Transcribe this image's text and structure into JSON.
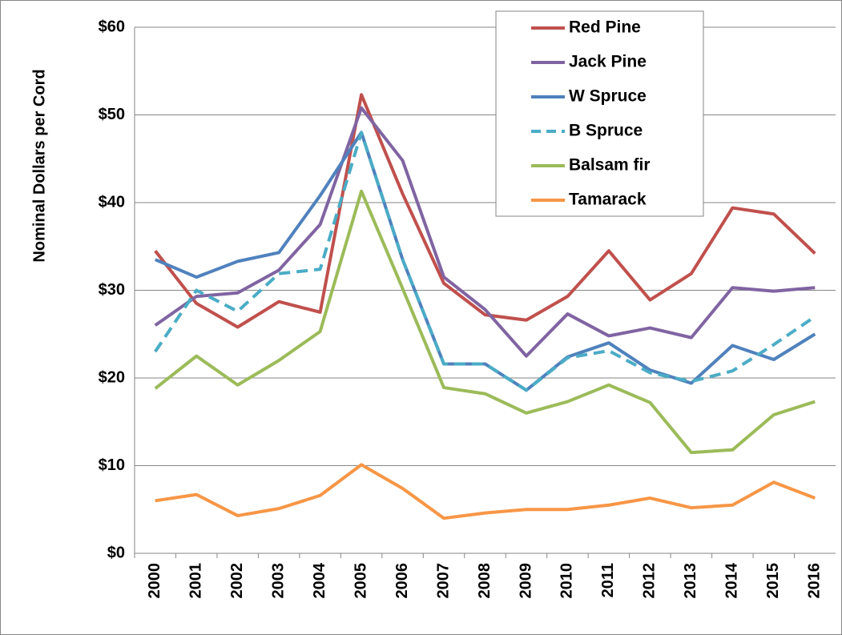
{
  "chart_data": {
    "type": "line",
    "y_label": "Nominal Dollars per Cord",
    "categories": [
      "2000",
      "2001",
      "2002",
      "2003",
      "2004",
      "2005",
      "2006",
      "2007",
      "2008",
      "2009",
      "2010",
      "2011",
      "2012",
      "2013",
      "2014",
      "2015",
      "2016"
    ],
    "series": [
      {
        "name": "Red Pine",
        "color": "#c0504d",
        "values": [
          34.5,
          28.5,
          25.8,
          28.7,
          27.5,
          52.3,
          41,
          30.8,
          27.2,
          26.6,
          29.3,
          34.5,
          28.9,
          31.9,
          39.4,
          38.7,
          34.2
        ]
      },
      {
        "name": "Jack Pine",
        "color": "#8064a2",
        "values": [
          26.0,
          29.3,
          29.7,
          32.3,
          37.5,
          50.8,
          44.8,
          31.5,
          27.8,
          22.5,
          27.3,
          24.8,
          25.7,
          24.6,
          30.3,
          29.9,
          30.3
        ]
      },
      {
        "name": "W Spruce",
        "color": "#4f81bd",
        "values": [
          33.5,
          31.5,
          33.3,
          34.3,
          40.8,
          48.0,
          33.5,
          21.6,
          21.6,
          18.6,
          22.4,
          24.0,
          20.9,
          19.4,
          23.7,
          22.1,
          25.0
        ]
      },
      {
        "name": "B Spruce",
        "color": "#4bacc6",
        "dashed": true,
        "values": [
          23.0,
          30.0,
          27.6,
          31.9,
          32.4,
          48.0,
          33.5,
          21.6,
          21.6,
          18.6,
          22.3,
          23.1,
          20.6,
          19.6,
          20.8,
          23.8,
          27.0
        ]
      },
      {
        "name": "Balsam fir",
        "color": "#9bbb59",
        "values": [
          18.8,
          22.5,
          19.2,
          22.0,
          25.3,
          41.3,
          30.2,
          18.9,
          18.2,
          16.0,
          17.3,
          19.2,
          17.2,
          11.5,
          11.8,
          15.8,
          17.3
        ]
      },
      {
        "name": "Tamarack",
        "color": "#f79646",
        "values": [
          6.0,
          6.7,
          4.3,
          5.1,
          6.6,
          10.1,
          7.4,
          4.0,
          4.6,
          5.0,
          5.0,
          5.5,
          6.3,
          5.2,
          5.5,
          8.1,
          6.3
        ]
      }
    ],
    "ylim": [
      0,
      60
    ],
    "yticks": [
      {
        "value": 0,
        "label": "$0"
      },
      {
        "value": 10,
        "label": "$10"
      },
      {
        "value": 20,
        "label": "$20"
      },
      {
        "value": 30,
        "label": "$30"
      },
      {
        "value": 40,
        "label": "$40"
      },
      {
        "value": 50,
        "label": "$50"
      },
      {
        "value": 60,
        "label": "$60"
      }
    ],
    "grid": true,
    "legend": "top-right"
  }
}
